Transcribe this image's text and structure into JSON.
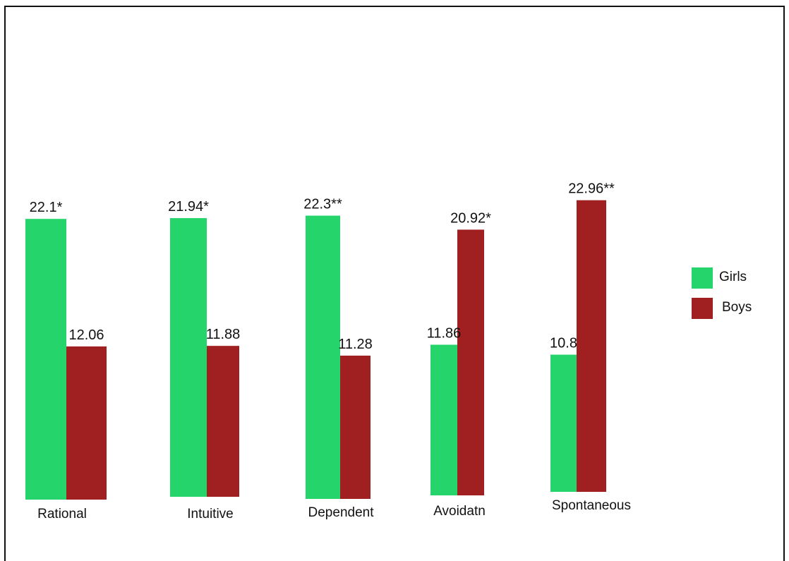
{
  "colors": {
    "girls": "#25d56b",
    "boys": "#a01f20"
  },
  "chart_data": {
    "type": "bar",
    "title": "",
    "xlabel": "",
    "ylabel": "",
    "grid": false,
    "legend_position": "right",
    "categories": [
      "Rational",
      "Intuitive",
      "Dependent",
      "Avoidatn",
      "Spontaneous"
    ],
    "series": [
      {
        "name": "Girls",
        "values": [
          22.1,
          21.94,
          22.3,
          11.86,
          10.8
        ],
        "labels": [
          "22.1*",
          "21.94*",
          "22.3**",
          "11.86",
          "10.8"
        ]
      },
      {
        "name": "Boys",
        "values": [
          12.06,
          11.88,
          11.28,
          20.92,
          22.96
        ],
        "labels": [
          "12.06",
          "11.88",
          "11.28",
          "20.92*",
          "22.96**"
        ]
      }
    ]
  }
}
